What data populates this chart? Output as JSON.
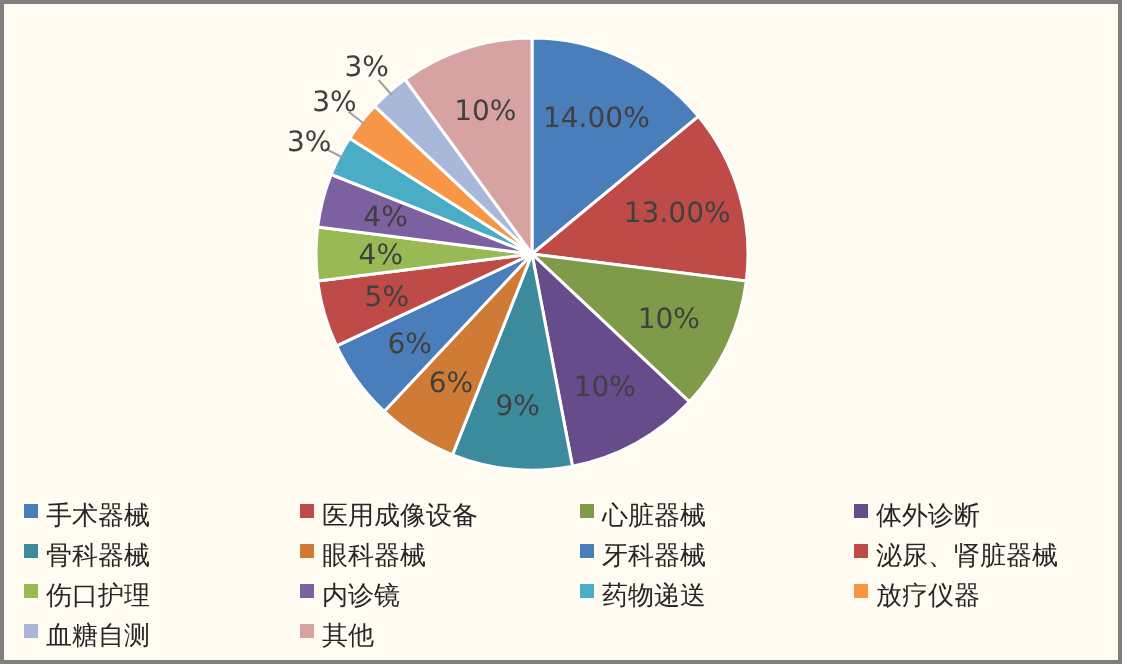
{
  "chart_data": {
    "type": "pie",
    "categories": [
      "手术器械",
      "医用成像设备",
      "心脏器械",
      "体外诊断",
      "骨科器械",
      "眼科器械",
      "牙科器械",
      "泌尿、肾脏器械",
      "伤口护理",
      "内诊镜",
      "药物递送",
      "放疗仪器",
      "血糖自测",
      "其他"
    ],
    "values": [
      14,
      13,
      10,
      10,
      9,
      6,
      6,
      5,
      4,
      4,
      3,
      3,
      3,
      10
    ],
    "colors": [
      "#4a7ebb",
      "#be4b48",
      "#7f9a48",
      "#664c8a",
      "#3b8b9d",
      "#cf7a35",
      "#4a7ebb",
      "#be4b48",
      "#98b954",
      "#7d60a0",
      "#4bacc6",
      "#f79646",
      "#a9b7d9",
      "#d6a3a2"
    ],
    "value_labels": [
      "14.00%",
      "13.00%",
      "10%",
      "10%",
      "9%",
      "6%",
      "6%",
      "5%",
      "4%",
      "4%",
      "3%",
      "3%",
      "3%",
      "10%"
    ],
    "legend": "bottom"
  }
}
